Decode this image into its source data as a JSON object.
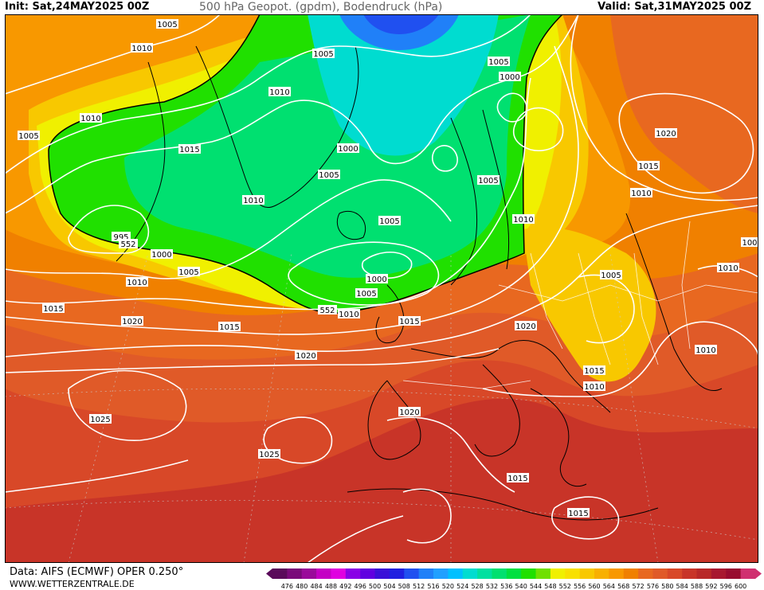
{
  "header": {
    "init_label": "Init: Sat,24MAY2025 00Z",
    "title": "500 hPa Geopot. (gpdm), Bodendruck (hPa)",
    "valid_label": "Valid: Sat,31MAY2025 00Z"
  },
  "footer": {
    "data_source": "Data: AIFS (ECMWF) OPER 0.250°",
    "website": "WWW.WETTERZENTRALE.DE"
  },
  "legend": {
    "ticks": [
      "476",
      "480",
      "484",
      "488",
      "492",
      "496",
      "500",
      "504",
      "508",
      "512",
      "516",
      "520",
      "524",
      "528",
      "532",
      "536",
      "540",
      "544",
      "548",
      "552",
      "556",
      "560",
      "564",
      "568",
      "572",
      "576",
      "580",
      "584",
      "588",
      "592",
      "596",
      "600"
    ],
    "colors": [
      "#5a0a5a",
      "#7a0a7a",
      "#9a0a9a",
      "#c400c4",
      "#e000e0",
      "#8a00e6",
      "#6000e0",
      "#3a10d8",
      "#2020e0",
      "#2050f0",
      "#2080f8",
      "#20a0ff",
      "#00c0ff",
      "#00dcd0",
      "#00e0a0",
      "#00e070",
      "#00e040",
      "#20e000",
      "#70e000",
      "#f0f000",
      "#f8e000",
      "#f8c800",
      "#f8b000",
      "#f89800",
      "#f08000",
      "#e86820",
      "#e05a28",
      "#d84828",
      "#c83428",
      "#b82828",
      "#a81830",
      "#980c30",
      "#d03070"
    ]
  },
  "map": {
    "labels": [
      {
        "text": "1010"
      },
      {
        "text": "1005"
      },
      {
        "text": "1005"
      },
      {
        "text": "1010"
      },
      {
        "text": "1005"
      },
      {
        "text": "1000"
      },
      {
        "text": "1010"
      },
      {
        "text": "1015"
      },
      {
        "text": "1005"
      },
      {
        "text": "1000"
      },
      {
        "text": "1005"
      },
      {
        "text": "1010"
      },
      {
        "text": "1005"
      },
      {
        "text": "1020"
      },
      {
        "text": "1015"
      },
      {
        "text": "1010"
      },
      {
        "text": "995"
      },
      {
        "text": "552"
      },
      {
        "text": "1000"
      },
      {
        "text": "1005"
      },
      {
        "text": "1010"
      },
      {
        "text": "1005"
      },
      {
        "text": "1000"
      },
      {
        "text": "1005"
      },
      {
        "text": "1010"
      },
      {
        "text": "1010"
      },
      {
        "text": "1015"
      },
      {
        "text": "1020"
      },
      {
        "text": "1015"
      },
      {
        "text": "552"
      },
      {
        "text": "1010"
      },
      {
        "text": "1015"
      },
      {
        "text": "1020"
      },
      {
        "text": "1005"
      },
      {
        "text": "1010"
      },
      {
        "text": "100"
      },
      {
        "text": "1020"
      },
      {
        "text": "1010"
      },
      {
        "text": "1015"
      },
      {
        "text": "1010"
      },
      {
        "text": "1025"
      },
      {
        "text": "1020"
      },
      {
        "text": "1025"
      },
      {
        "text": "1015"
      },
      {
        "text": "1015"
      }
    ],
    "colors": {
      "green_core": "#00e070",
      "green_mid": "#20e000",
      "blue": "#2080f8",
      "cyan": "#00dcd0",
      "yellow": "#f0f000",
      "orange1": "#f8b000",
      "orange2": "#f08000",
      "red1": "#e05a28",
      "red2": "#c83428",
      "red3": "#b82828"
    }
  }
}
